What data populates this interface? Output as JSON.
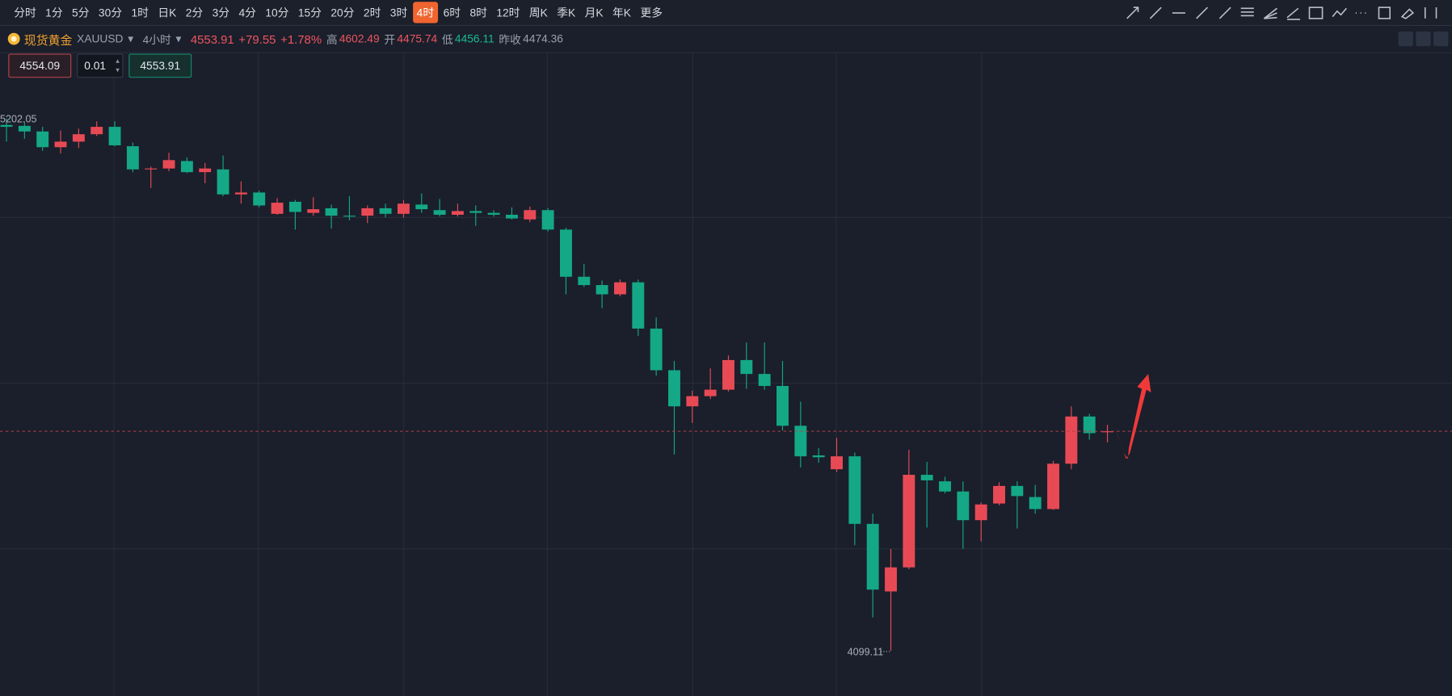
{
  "toolbar": {
    "periods": [
      "分时",
      "1分",
      "5分",
      "30分",
      "1时",
      "日K",
      "2分",
      "3分",
      "4分",
      "10分",
      "15分",
      "20分",
      "2时",
      "3时",
      "4时",
      "6时",
      "8时",
      "12时",
      "周K",
      "季K",
      "月K",
      "年K",
      "更多"
    ],
    "active_index": 14
  },
  "quote": {
    "name": "现货黄金",
    "symbol": "XAUUSD",
    "interval": "4小时",
    "price": 4553.91,
    "change": "+79.55",
    "change_pct": "+1.78%",
    "high_label": "高",
    "high": 4602.49,
    "open_label": "开",
    "open": 4475.74,
    "low_label": "低",
    "low": 4456.11,
    "prev_close_label": "昨收",
    "prev_close": 4474.36
  },
  "order": {
    "sell": 4554.09,
    "quantity": 0.01,
    "buy": 4553.91
  },
  "chart": {
    "type": "candlestick",
    "ylim": [
      4005.3,
      5338.3
    ],
    "candles": [
      {
        "o": 5188.7,
        "h": 5202.05,
        "l": 5154.1,
        "c": 5184.8
      },
      {
        "o": 5186.8,
        "h": 5194.4,
        "l": 5159.9,
        "c": 5175.2
      },
      {
        "o": 5175.2,
        "h": 5184.8,
        "l": 5135.0,
        "c": 5142.6
      },
      {
        "o": 5142.6,
        "h": 5177.2,
        "l": 5129.2,
        "c": 5154.1
      },
      {
        "o": 5154.1,
        "h": 5181.0,
        "l": 5140.7,
        "c": 5169.5
      },
      {
        "o": 5169.5,
        "h": 5196.3,
        "l": 5165.7,
        "c": 5184.8
      },
      {
        "o": 5184.8,
        "h": 5196.3,
        "l": 5144.6,
        "c": 5146.5
      },
      {
        "o": 5144.6,
        "h": 5152.2,
        "l": 5090.9,
        "c": 5096.6
      },
      {
        "o": 5096.6,
        "h": 5102.4,
        "l": 5058.2,
        "c": 5098.5
      },
      {
        "o": 5098.5,
        "h": 5131.1,
        "l": 5092.8,
        "c": 5115.8
      },
      {
        "o": 5113.9,
        "h": 5121.5,
        "l": 5088.9,
        "c": 5090.9
      },
      {
        "o": 5090.9,
        "h": 5110.0,
        "l": 5067.8,
        "c": 5098.5
      },
      {
        "o": 5096.6,
        "h": 5125.4,
        "l": 5041.0,
        "c": 5044.8
      },
      {
        "o": 5044.8,
        "h": 5071.7,
        "l": 5025.6,
        "c": 5048.7
      },
      {
        "o": 5048.7,
        "h": 5052.5,
        "l": 5018.0,
        "c": 5021.8
      },
      {
        "o": 5004.5,
        "h": 5037.1,
        "l": 5002.6,
        "c": 5027.6
      },
      {
        "o": 5029.5,
        "h": 5033.3,
        "l": 4971.9,
        "c": 5008.4
      },
      {
        "o": 5006.5,
        "h": 5039.1,
        "l": 5000.7,
        "c": 5014.1
      },
      {
        "o": 5016.1,
        "h": 5023.7,
        "l": 4973.9,
        "c": 5000.7
      },
      {
        "o": 5000.7,
        "h": 5041.0,
        "l": 4991.1,
        "c": 4998.8
      },
      {
        "o": 5000.7,
        "h": 5021.8,
        "l": 4985.4,
        "c": 5016.1
      },
      {
        "o": 5016.1,
        "h": 5025.6,
        "l": 4996.9,
        "c": 5004.5
      },
      {
        "o": 5004.5,
        "h": 5033.3,
        "l": 4996.9,
        "c": 5025.6
      },
      {
        "o": 5023.7,
        "h": 5046.7,
        "l": 5006.5,
        "c": 5014.1
      },
      {
        "o": 5012.2,
        "h": 5035.2,
        "l": 4998.8,
        "c": 5002.6
      },
      {
        "o": 5002.6,
        "h": 5025.6,
        "l": 4998.8,
        "c": 5010.3
      },
      {
        "o": 5010.3,
        "h": 5021.8,
        "l": 4979.6,
        "c": 5006.5
      },
      {
        "o": 5006.5,
        "h": 5012.2,
        "l": 4998.8,
        "c": 5002.6
      },
      {
        "o": 5002.6,
        "h": 5017.9,
        "l": 4993.0,
        "c": 4994.9
      },
      {
        "o": 4993.0,
        "h": 5019.9,
        "l": 4987.3,
        "c": 5012.2
      },
      {
        "o": 5012.2,
        "h": 5016.1,
        "l": 4968.1,
        "c": 4971.9
      },
      {
        "o": 4971.9,
        "h": 4975.8,
        "l": 4837.7,
        "c": 4874.1
      },
      {
        "o": 4874.1,
        "h": 4901.0,
        "l": 4853.0,
        "c": 4856.9
      },
      {
        "o": 4856.9,
        "h": 4866.4,
        "l": 4808.9,
        "c": 4837.7
      },
      {
        "o": 4837.7,
        "h": 4868.4,
        "l": 4833.8,
        "c": 4862.6
      },
      {
        "o": 4862.6,
        "h": 4868.4,
        "l": 4751.4,
        "c": 4766.7
      },
      {
        "o": 4766.7,
        "h": 4789.7,
        "l": 4668.9,
        "c": 4680.4
      },
      {
        "o": 4680.4,
        "h": 4699.6,
        "l": 4505.9,
        "c": 4605.6
      },
      {
        "o": 4605.6,
        "h": 4638.2,
        "l": 4571.1,
        "c": 4626.7
      },
      {
        "o": 4626.7,
        "h": 4684.2,
        "l": 4620.9,
        "c": 4640.1
      },
      {
        "o": 4640.1,
        "h": 4711.1,
        "l": 4636.3,
        "c": 4701.5
      },
      {
        "o": 4701.5,
        "h": 4737.9,
        "l": 4642.0,
        "c": 4672.7
      },
      {
        "o": 4672.7,
        "h": 4737.9,
        "l": 4640.1,
        "c": 4647.8
      },
      {
        "o": 4647.8,
        "h": 4699.6,
        "l": 4555.7,
        "c": 4565.3
      },
      {
        "o": 4565.3,
        "h": 4615.2,
        "l": 4479.0,
        "c": 4502.0
      },
      {
        "o": 4503.9,
        "h": 4519.3,
        "l": 4488.6,
        "c": 4500.1
      },
      {
        "o": 4475.2,
        "h": 4540.4,
        "l": 4469.4,
        "c": 4502.0
      },
      {
        "o": 4502.0,
        "h": 4509.7,
        "l": 4317.9,
        "c": 4362.0
      },
      {
        "o": 4362.0,
        "h": 4383.1,
        "l": 4168.3,
        "c": 4225.8
      },
      {
        "o": 4222.0,
        "h": 4310.2,
        "l": 4099.11,
        "c": 4271.9
      },
      {
        "o": 4271.9,
        "h": 4515.5,
        "l": 4268.0,
        "c": 4463.7
      },
      {
        "o": 4463.7,
        "h": 4490.5,
        "l": 4354.3,
        "c": 4452.2
      },
      {
        "o": 4450.2,
        "h": 4459.8,
        "l": 4425.3,
        "c": 4429.1
      },
      {
        "o": 4429.1,
        "h": 4450.2,
        "l": 4310.2,
        "c": 4369.7
      },
      {
        "o": 4369.7,
        "h": 4406.1,
        "l": 4325.6,
        "c": 4402.3
      },
      {
        "o": 4404.2,
        "h": 4448.3,
        "l": 4400.4,
        "c": 4440.6
      },
      {
        "o": 4440.6,
        "h": 4450.2,
        "l": 4352.4,
        "c": 4419.6
      },
      {
        "o": 4417.6,
        "h": 4442.6,
        "l": 4383.1,
        "c": 4392.7
      },
      {
        "o": 4392.7,
        "h": 4492.4,
        "l": 4390.8,
        "c": 4486.7
      },
      {
        "o": 4486.7,
        "h": 4605.6,
        "l": 4475.2,
        "c": 4584.5
      },
      {
        "o": 4584.5,
        "h": 4590.3,
        "l": 4536.5,
        "c": 4550.0
      },
      {
        "o": 4551.9,
        "h": 4567.2,
        "l": 4530.8,
        "c": 4553.91
      }
    ],
    "up_color": "#e84a55",
    "down_color": "#14a887"
  }
}
